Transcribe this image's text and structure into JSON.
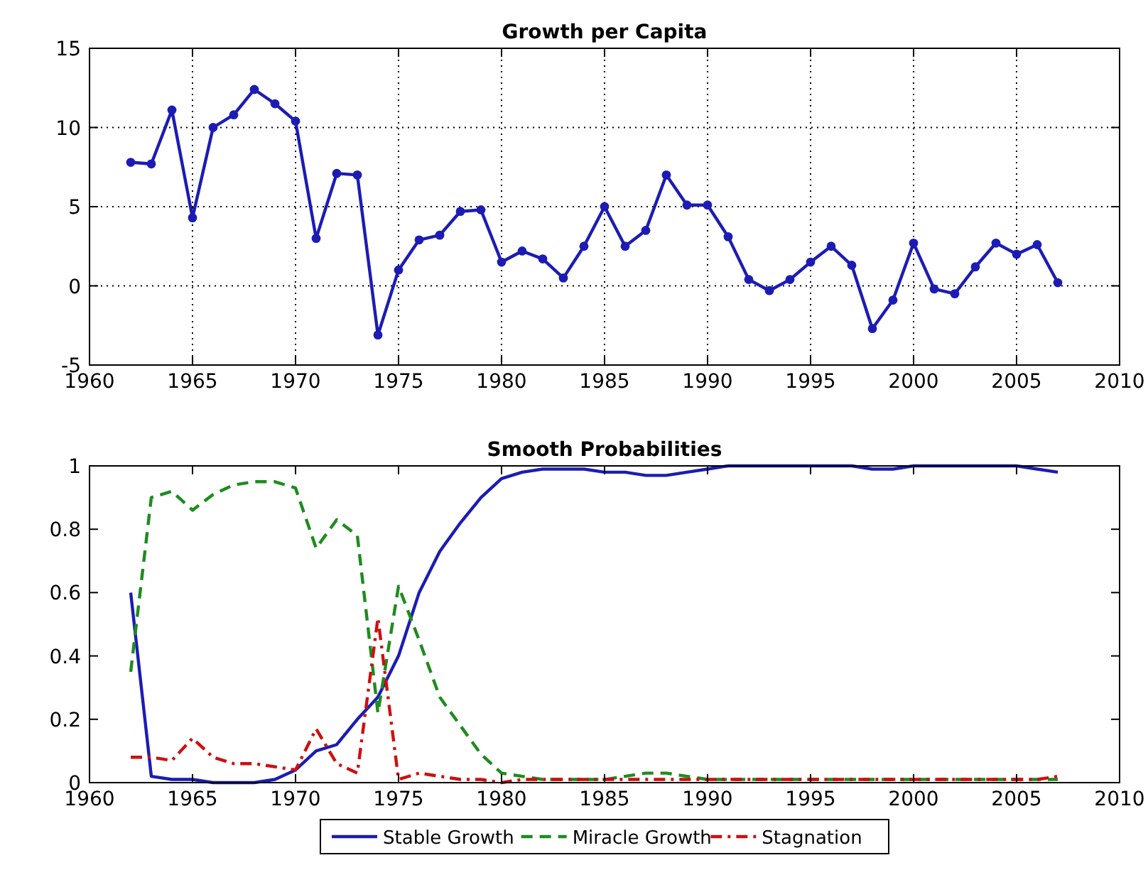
{
  "chart_data": [
    {
      "type": "line",
      "title": "Growth per Capita",
      "x": [
        1962,
        1963,
        1964,
        1965,
        1966,
        1967,
        1968,
        1969,
        1970,
        1971,
        1972,
        1973,
        1974,
        1975,
        1976,
        1977,
        1978,
        1979,
        1980,
        1981,
        1982,
        1983,
        1984,
        1985,
        1986,
        1987,
        1988,
        1989,
        1990,
        1991,
        1992,
        1993,
        1994,
        1995,
        1996,
        1997,
        1998,
        1999,
        2000,
        2001,
        2002,
        2003,
        2004,
        2005,
        2006,
        2007
      ],
      "xlim": [
        1960,
        2010
      ],
      "xticks": [
        1960,
        1965,
        1970,
        1975,
        1980,
        1985,
        1990,
        1995,
        2000,
        2005,
        2010
      ],
      "ylim": [
        -5,
        15
      ],
      "yticks": [
        -5,
        0,
        5,
        10,
        15
      ],
      "grid": true,
      "marker": "circle",
      "line_style": "solid",
      "series": [
        {
          "color": "#1c1cb4",
          "values": [
            7.8,
            7.7,
            11.1,
            4.3,
            10.0,
            10.8,
            12.4,
            11.5,
            10.4,
            3.0,
            7.1,
            7.0,
            -3.1,
            1.0,
            2.9,
            3.2,
            4.7,
            4.8,
            1.5,
            2.2,
            1.7,
            0.5,
            2.5,
            5.0,
            2.5,
            3.5,
            7.0,
            5.1,
            5.1,
            3.1,
            0.4,
            -0.3,
            0.4,
            1.5,
            2.5,
            1.3,
            -2.7,
            -0.9,
            2.7,
            -0.2,
            -0.5,
            1.2,
            2.7,
            2.0,
            2.6,
            0.2
          ]
        }
      ]
    },
    {
      "type": "line",
      "title": "Smooth Probabilities",
      "x": [
        1962,
        1963,
        1964,
        1965,
        1966,
        1967,
        1968,
        1969,
        1970,
        1971,
        1972,
        1973,
        1974,
        1975,
        1976,
        1977,
        1978,
        1979,
        1980,
        1981,
        1982,
        1983,
        1984,
        1985,
        1986,
        1987,
        1988,
        1989,
        1990,
        1991,
        1992,
        1993,
        1994,
        1995,
        1996,
        1997,
        1998,
        1999,
        2000,
        2001,
        2002,
        2003,
        2004,
        2005,
        2006,
        2007
      ],
      "xlim": [
        1960,
        2010
      ],
      "xticks": [
        1960,
        1965,
        1970,
        1975,
        1980,
        1985,
        1990,
        1995,
        2000,
        2005,
        2010
      ],
      "ylim": [
        0,
        1
      ],
      "yticks": [
        0,
        0.2,
        0.4,
        0.6,
        0.8,
        1
      ],
      "grid": false,
      "legend": "bottom",
      "series": [
        {
          "name": "Stable Growth",
          "color": "#1c1cb4",
          "line_style": "solid",
          "values": [
            0.6,
            0.02,
            0.01,
            0.01,
            0,
            0,
            0,
            0.01,
            0.04,
            0.1,
            0.12,
            0.2,
            0.27,
            0.4,
            0.6,
            0.73,
            0.82,
            0.9,
            0.96,
            0.98,
            0.99,
            0.99,
            0.99,
            0.98,
            0.98,
            0.97,
            0.97,
            0.98,
            0.99,
            1,
            1,
            1,
            1,
            1,
            1,
            1,
            0.99,
            0.99,
            1,
            1,
            1,
            1,
            1,
            1,
            0.99,
            0.98
          ]
        },
        {
          "name": "Miracle Growth",
          "color": "#1e8c1e",
          "line_style": "dashed",
          "values": [
            0.35,
            0.9,
            0.92,
            0.86,
            0.91,
            0.94,
            0.95,
            0.95,
            0.93,
            0.74,
            0.83,
            0.78,
            0.22,
            0.62,
            0.45,
            0.27,
            0.18,
            0.09,
            0.03,
            0.02,
            0.01,
            0.01,
            0.01,
            0.01,
            0.02,
            0.03,
            0.03,
            0.02,
            0.01,
            0.01,
            0.01,
            0.01,
            0.01,
            0.01,
            0.01,
            0.01,
            0.01,
            0.01,
            0.01,
            0.01,
            0.01,
            0.01,
            0.01,
            0.01,
            0.01,
            0.01
          ]
        },
        {
          "name": "Stagnation",
          "color": "#cc1010",
          "line_style": "dashdot",
          "values": [
            0.08,
            0.08,
            0.07,
            0.14,
            0.08,
            0.06,
            0.06,
            0.05,
            0.04,
            0.17,
            0.06,
            0.03,
            0.52,
            0.01,
            0.03,
            0.02,
            0.01,
            0.01,
            0,
            0.01,
            0.01,
            0.01,
            0.01,
            0.01,
            0.01,
            0.01,
            0.01,
            0.01,
            0.01,
            0.01,
            0.01,
            0.01,
            0.01,
            0.01,
            0.01,
            0.01,
            0.01,
            0.01,
            0.01,
            0.01,
            0.01,
            0.01,
            0.01,
            0.01,
            0.01,
            0.02
          ]
        }
      ]
    }
  ]
}
